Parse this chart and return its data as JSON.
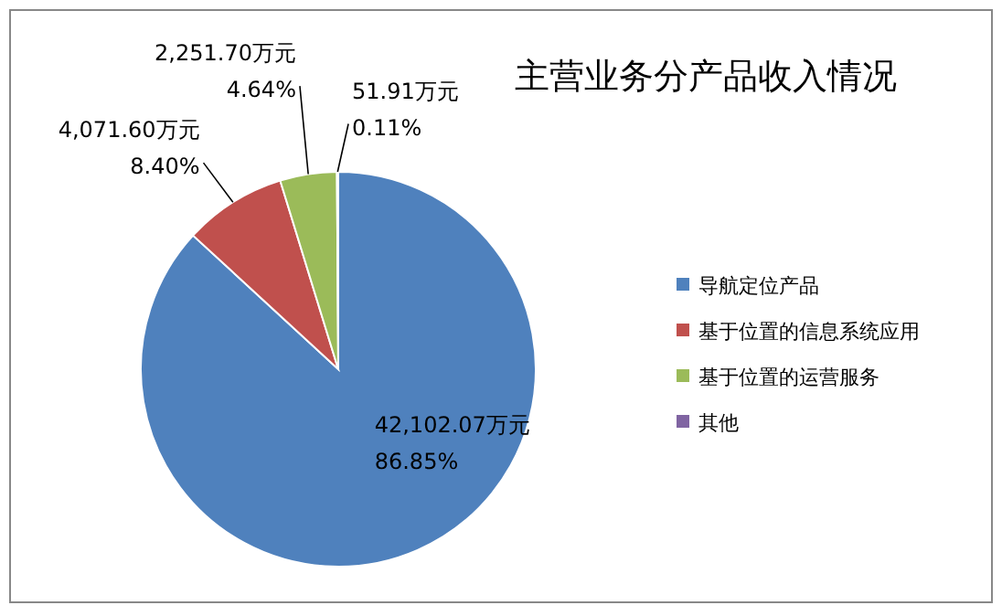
{
  "chart_data": {
    "type": "pie",
    "title": "主营业务分产品收入情况",
    "categories": [
      "导航定位产品",
      "基于位置的信息系统应用",
      "基于位置的运营服务",
      "其他"
    ],
    "values": [
      42102.07,
      4071.6,
      2251.7,
      51.91
    ],
    "colors": [
      "#4f81bd",
      "#c0504d",
      "#9bbb59",
      "#8064a2"
    ],
    "value_labels": [
      "42,102.07万元\n86.85%",
      "4,071.60万元\n8.40%",
      "2,251.70万元\n4.64%",
      "51.91万元\n0.11%"
    ],
    "legend": "right"
  }
}
